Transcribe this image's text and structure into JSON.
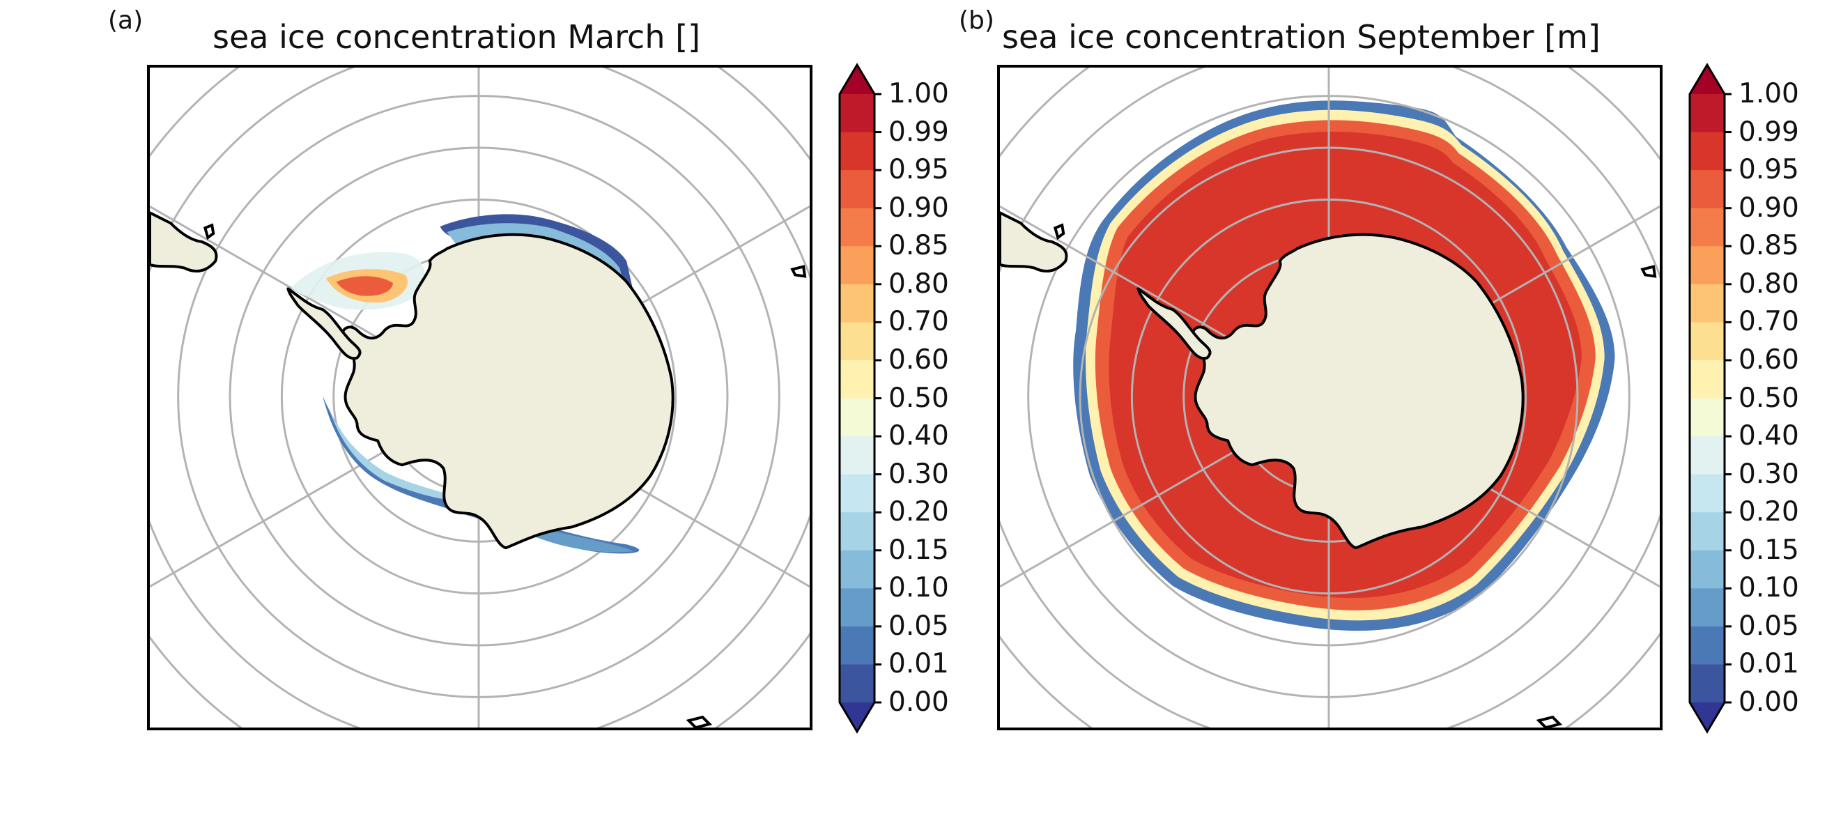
{
  "panels": [
    {
      "letter": "(a)",
      "title": "sea ice concentration March []"
    },
    {
      "letter": "(b)",
      "title": "sea ice concentration September [m]"
    }
  ],
  "colorbar": {
    "levels": [
      "1.00",
      "0.99",
      "0.95",
      "0.90",
      "0.85",
      "0.80",
      "0.70",
      "0.60",
      "0.50",
      "0.40",
      "0.30",
      "0.20",
      "0.15",
      "0.10",
      "0.05",
      "0.01",
      "0.00"
    ],
    "colors": [
      "#be1a29",
      "#d8362b",
      "#ea5c3c",
      "#f47b4a",
      "#faa05b",
      "#fdc473",
      "#fddf91",
      "#fff2b0",
      "#f5fad6",
      "#e1f2f1",
      "#c6e6f0",
      "#a7d3e7",
      "#86bbd9",
      "#659cc8",
      "#4a79b5",
      "#3b569e"
    ],
    "over_color": "#a50026",
    "under_color": "#313695",
    "extend": "both"
  },
  "map_colors": {
    "land": "#efeedd",
    "coast": "#000000",
    "grid": "#b3b3b3",
    "ocean": "#ffffff"
  }
}
